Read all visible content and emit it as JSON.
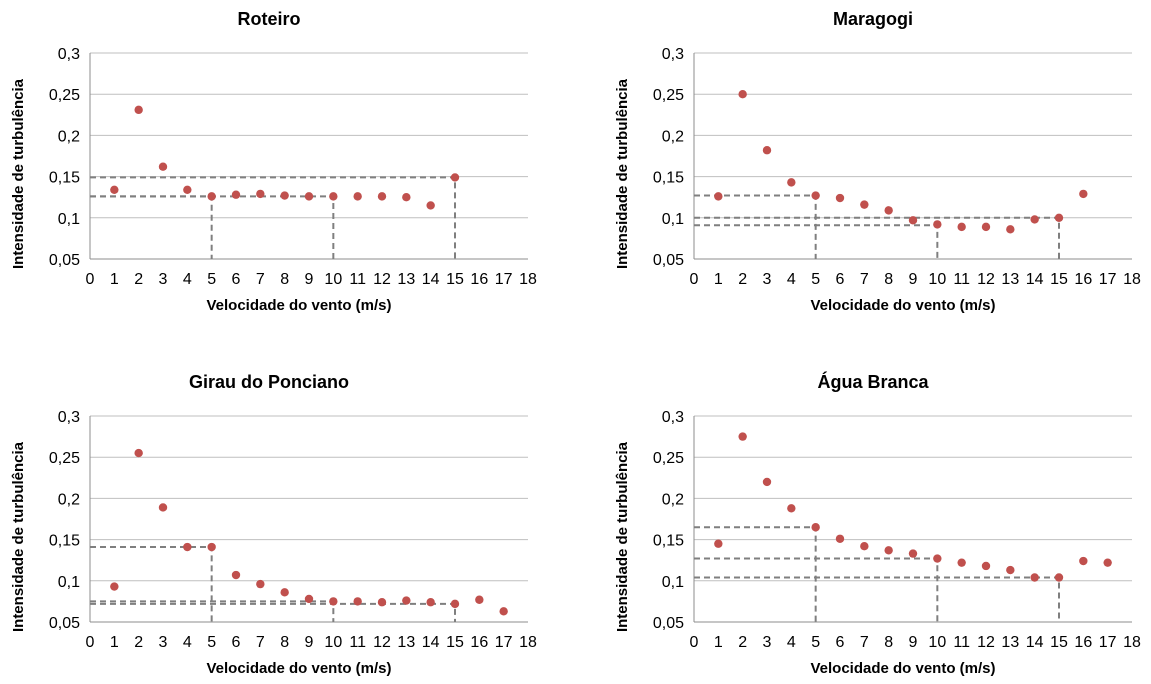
{
  "colors": {
    "points": "#c0504d",
    "grid": "#bfbfbf",
    "reference_lines": "#7f7f7f"
  },
  "chart_data": [
    {
      "type": "scatter",
      "title": "Roteiro",
      "xlabel": "Velocidade do vento (m/s)",
      "ylabel": "Intensidade de turbulência",
      "xlim": [
        0,
        18
      ],
      "ylim": [
        0.05,
        0.3
      ],
      "xticks": [
        "0",
        "1",
        "2",
        "3",
        "4",
        "5",
        "6",
        "7",
        "8",
        "9",
        "10",
        "11",
        "12",
        "13",
        "14",
        "15",
        "16",
        "17",
        "18"
      ],
      "yticks": [
        "0,05",
        "0,1",
        "0,15",
        "0,2",
        "0,25",
        "0,3"
      ],
      "grid": "horizontal",
      "points": [
        [
          1,
          0.134
        ],
        [
          2,
          0.231
        ],
        [
          3,
          0.162
        ],
        [
          4,
          0.134
        ],
        [
          5,
          0.126
        ],
        [
          6,
          0.128
        ],
        [
          7,
          0.129
        ],
        [
          8,
          0.127
        ],
        [
          9,
          0.126
        ],
        [
          10,
          0.126
        ],
        [
          11,
          0.126
        ],
        [
          12,
          0.126
        ],
        [
          13,
          0.125
        ],
        [
          14,
          0.115
        ],
        [
          15,
          0.149
        ]
      ],
      "reference_lines": [
        {
          "x": 5,
          "y": 0.126
        },
        {
          "x": 10,
          "y": 0.126
        },
        {
          "x": 15,
          "y": 0.149
        }
      ]
    },
    {
      "type": "scatter",
      "title": "Maragogi",
      "xlabel": "Velocidade do vento (m/s)",
      "ylabel": "Intensidade de turbulência",
      "xlim": [
        0,
        18
      ],
      "ylim": [
        0.05,
        0.3
      ],
      "xticks": [
        "0",
        "1",
        "2",
        "3",
        "4",
        "5",
        "6",
        "7",
        "8",
        "9",
        "10",
        "11",
        "12",
        "13",
        "14",
        "15",
        "16",
        "17",
        "18"
      ],
      "yticks": [
        "0,05",
        "0,1",
        "0,15",
        "0,2",
        "0,25",
        "0,3"
      ],
      "grid": "horizontal",
      "points": [
        [
          1,
          0.126
        ],
        [
          2,
          0.25
        ],
        [
          3,
          0.182
        ],
        [
          4,
          0.143
        ],
        [
          5,
          0.127
        ],
        [
          6,
          0.124
        ],
        [
          7,
          0.116
        ],
        [
          8,
          0.109
        ],
        [
          9,
          0.097
        ],
        [
          10,
          0.092
        ],
        [
          11,
          0.089
        ],
        [
          12,
          0.089
        ],
        [
          13,
          0.086
        ],
        [
          14,
          0.098
        ],
        [
          15,
          0.1
        ],
        [
          16,
          0.129
        ]
      ],
      "reference_lines": [
        {
          "x": 5,
          "y": 0.127
        },
        {
          "x": 10,
          "y": 0.091
        },
        {
          "x": 15,
          "y": 0.1
        }
      ]
    },
    {
      "type": "scatter",
      "title": "Girau do Ponciano",
      "xlabel": "Velocidade do vento (m/s)",
      "ylabel": "Intensidade de turbulência",
      "xlim": [
        0,
        18
      ],
      "ylim": [
        0.05,
        0.3
      ],
      "xticks": [
        "0",
        "1",
        "2",
        "3",
        "4",
        "5",
        "6",
        "7",
        "8",
        "9",
        "10",
        "11",
        "12",
        "13",
        "14",
        "15",
        "16",
        "17",
        "18"
      ],
      "yticks": [
        "0,05",
        "0,1",
        "0,15",
        "0,2",
        "0,25",
        "0,3"
      ],
      "grid": "horizontal",
      "points": [
        [
          1,
          0.093
        ],
        [
          2,
          0.255
        ],
        [
          3,
          0.189
        ],
        [
          4,
          0.141
        ],
        [
          5,
          0.141
        ],
        [
          6,
          0.107
        ],
        [
          7,
          0.096
        ],
        [
          8,
          0.086
        ],
        [
          9,
          0.078
        ],
        [
          10,
          0.075
        ],
        [
          11,
          0.075
        ],
        [
          12,
          0.074
        ],
        [
          13,
          0.076
        ],
        [
          14,
          0.074
        ],
        [
          15,
          0.072
        ],
        [
          16,
          0.077
        ],
        [
          17,
          0.063
        ]
      ],
      "reference_lines": [
        {
          "x": 5,
          "y": 0.141
        },
        {
          "x": 10,
          "y": 0.075
        },
        {
          "x": 15,
          "y": 0.072
        }
      ]
    },
    {
      "type": "scatter",
      "title": "Água Branca",
      "xlabel": "Velocidade do vento (m/s)",
      "ylabel": "Intensidade de turbulência",
      "xlim": [
        0,
        18
      ],
      "ylim": [
        0.05,
        0.3
      ],
      "xticks": [
        "0",
        "1",
        "2",
        "3",
        "4",
        "5",
        "6",
        "7",
        "8",
        "9",
        "10",
        "11",
        "12",
        "13",
        "14",
        "15",
        "16",
        "17",
        "18"
      ],
      "yticks": [
        "0,05",
        "0,1",
        "0,15",
        "0,2",
        "0,25",
        "0,3"
      ],
      "grid": "horizontal",
      "points": [
        [
          1,
          0.145
        ],
        [
          2,
          0.275
        ],
        [
          3,
          0.22
        ],
        [
          4,
          0.188
        ],
        [
          5,
          0.165
        ],
        [
          6,
          0.151
        ],
        [
          7,
          0.142
        ],
        [
          8,
          0.137
        ],
        [
          9,
          0.133
        ],
        [
          10,
          0.127
        ],
        [
          11,
          0.122
        ],
        [
          12,
          0.118
        ],
        [
          13,
          0.113
        ],
        [
          14,
          0.104
        ],
        [
          15,
          0.104
        ],
        [
          16,
          0.124
        ],
        [
          17,
          0.122
        ]
      ],
      "reference_lines": [
        {
          "x": 5,
          "y": 0.165
        },
        {
          "x": 10,
          "y": 0.127
        },
        {
          "x": 15,
          "y": 0.104
        }
      ]
    }
  ]
}
